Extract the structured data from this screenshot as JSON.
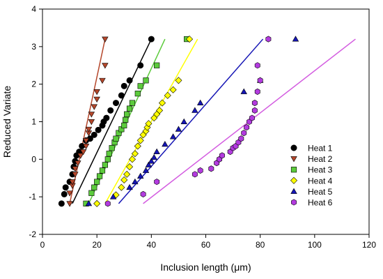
{
  "chart_data": {
    "type": "scatter",
    "xlabel": "Inclusion length   (μm)",
    "ylabel": "Reduced Variate",
    "xlim": [
      0,
      120
    ],
    "ylim": [
      -2,
      4
    ],
    "xticks": [
      0,
      20,
      40,
      60,
      80,
      100,
      120
    ],
    "yticks": [
      -2,
      -1,
      0,
      1,
      2,
      3,
      4
    ],
    "grid": false,
    "legend_position": "right",
    "series": [
      {
        "name": "Heat  1",
        "marker": "circle",
        "color": "#000000",
        "points": [
          [
            7,
            -1.18
          ],
          [
            8,
            -0.93
          ],
          [
            8.5,
            -0.75
          ],
          [
            10,
            -0.6
          ],
          [
            11,
            -0.4
          ],
          [
            11.5,
            -0.2
          ],
          [
            12,
            -0.05
          ],
          [
            12.5,
            0.1
          ],
          [
            13.5,
            0.2
          ],
          [
            14.5,
            0.35
          ],
          [
            16,
            0.5
          ],
          [
            17.5,
            0.55
          ],
          [
            19,
            0.65
          ],
          [
            20.5,
            0.78
          ],
          [
            22,
            0.9
          ],
          [
            22.5,
            1.0
          ],
          [
            23.5,
            1.1
          ],
          [
            25,
            1.3
          ],
          [
            27,
            1.5
          ],
          [
            29,
            1.7
          ],
          [
            30,
            1.95
          ],
          [
            32,
            2.1
          ],
          [
            36,
            2.5
          ],
          [
            40,
            3.2
          ]
        ],
        "fit": [
          [
            11,
            -1.18
          ],
          [
            40,
            3.2
          ]
        ],
        "line_color": "#000000"
      },
      {
        "name": "Heat  2",
        "marker": "triangle-down",
        "color": "#b5472b",
        "points": [
          [
            10,
            -1.18
          ],
          [
            10,
            -0.9
          ],
          [
            11,
            -0.7
          ],
          [
            11,
            -0.6
          ],
          [
            12,
            -0.4
          ],
          [
            12,
            -0.25
          ],
          [
            13,
            -0.1
          ],
          [
            14,
            0.1
          ],
          [
            15,
            0.2
          ],
          [
            16,
            0.35
          ],
          [
            16,
            0.5
          ],
          [
            17,
            0.7
          ],
          [
            17,
            0.8
          ],
          [
            18,
            1.0
          ],
          [
            18,
            1.2
          ],
          [
            19,
            1.4
          ],
          [
            20,
            1.6
          ],
          [
            20,
            1.8
          ],
          [
            22,
            2.1
          ],
          [
            23,
            2.5
          ],
          [
            23,
            3.2
          ]
        ],
        "fit": [
          [
            10,
            -1.18
          ],
          [
            23,
            3.2
          ]
        ],
        "line_color": "#b5472b"
      },
      {
        "name": "Heat  3",
        "marker": "square",
        "color": "#5ccb3c",
        "points": [
          [
            16,
            -1.18
          ],
          [
            18,
            -0.9
          ],
          [
            19,
            -0.75
          ],
          [
            20,
            -0.6
          ],
          [
            21,
            -0.45
          ],
          [
            22,
            -0.3
          ],
          [
            23,
            -0.15
          ],
          [
            24,
            0
          ],
          [
            24.5,
            0.15
          ],
          [
            25.5,
            0.3
          ],
          [
            26.5,
            0.45
          ],
          [
            27,
            0.55
          ],
          [
            28,
            0.7
          ],
          [
            29,
            0.8
          ],
          [
            30,
            0.9
          ],
          [
            30.5,
            1.05
          ],
          [
            31,
            1.2
          ],
          [
            32,
            1.35
          ],
          [
            33,
            1.5
          ],
          [
            35,
            1.75
          ],
          [
            36,
            1.95
          ],
          [
            38,
            2.1
          ],
          [
            42,
            2.5
          ],
          [
            53,
            3.2
          ]
        ],
        "fit": [
          [
            17,
            -1.18
          ],
          [
            45,
            3.2
          ]
        ],
        "line_color": "#5ccb3c"
      },
      {
        "name": "Heat  4",
        "marker": "diamond",
        "color": "#ffff00",
        "points": [
          [
            20,
            -1.18
          ],
          [
            27,
            -0.95
          ],
          [
            29,
            -0.75
          ],
          [
            30,
            -0.55
          ],
          [
            31,
            -0.4
          ],
          [
            32,
            -0.2
          ],
          [
            33,
            0
          ],
          [
            34,
            0.15
          ],
          [
            35,
            0.35
          ],
          [
            36,
            0.5
          ],
          [
            37,
            0.65
          ],
          [
            38,
            0.75
          ],
          [
            38.5,
            0.85
          ],
          [
            39,
            0.95
          ],
          [
            41,
            1.1
          ],
          [
            42,
            1.2
          ],
          [
            43,
            1.3
          ],
          [
            44,
            1.5
          ],
          [
            46,
            1.7
          ],
          [
            48,
            1.85
          ],
          [
            50,
            2.1
          ],
          [
            54,
            3.2
          ]
        ],
        "fit": [
          [
            23,
            -1.18
          ],
          [
            57,
            3.2
          ]
        ],
        "line_color": "#ffff00"
      },
      {
        "name": "Heat  5",
        "marker": "triangle-up",
        "color": "#1515b5",
        "points": [
          [
            17,
            -1.18
          ],
          [
            26,
            -1.0
          ],
          [
            32,
            -0.75
          ],
          [
            34,
            -0.6
          ],
          [
            36,
            -0.45
          ],
          [
            38,
            -0.3
          ],
          [
            39,
            -0.15
          ],
          [
            40,
            -0.05
          ],
          [
            41,
            0.05
          ],
          [
            42,
            0.2
          ],
          [
            45,
            0.4
          ],
          [
            48,
            0.6
          ],
          [
            50,
            0.8
          ],
          [
            52,
            1.0
          ],
          [
            56,
            1.3
          ],
          [
            58,
            1.5
          ],
          [
            74,
            1.8
          ],
          [
            80,
            2.1
          ],
          [
            93,
            3.2
          ]
        ],
        "fit": [
          [
            28,
            -1.18
          ],
          [
            81,
            3.2
          ]
        ],
        "line_color": "#1515b5"
      },
      {
        "name": "Heat  6",
        "marker": "hexagon",
        "color": "#b33bdf",
        "points": [
          [
            24,
            -1.18
          ],
          [
            37,
            -0.93
          ],
          [
            42,
            -0.6
          ],
          [
            56,
            -0.4
          ],
          [
            58,
            -0.3
          ],
          [
            62,
            -0.25
          ],
          [
            64,
            -0.1
          ],
          [
            65,
            0
          ],
          [
            66,
            0.1
          ],
          [
            69,
            0.2
          ],
          [
            70,
            0.3
          ],
          [
            71,
            0.35
          ],
          [
            72,
            0.45
          ],
          [
            73,
            0.55
          ],
          [
            74,
            0.7
          ],
          [
            75,
            0.85
          ],
          [
            76,
            1.0
          ],
          [
            77,
            1.1
          ],
          [
            78,
            1.3
          ],
          [
            78,
            1.5
          ],
          [
            79,
            1.8
          ],
          [
            80,
            2.1
          ],
          [
            79,
            2.5
          ],
          [
            83,
            3.2
          ]
        ],
        "fit": [
          [
            37,
            -1.18
          ],
          [
            115,
            3.2
          ]
        ],
        "line_color": "#d35ce0"
      }
    ]
  }
}
